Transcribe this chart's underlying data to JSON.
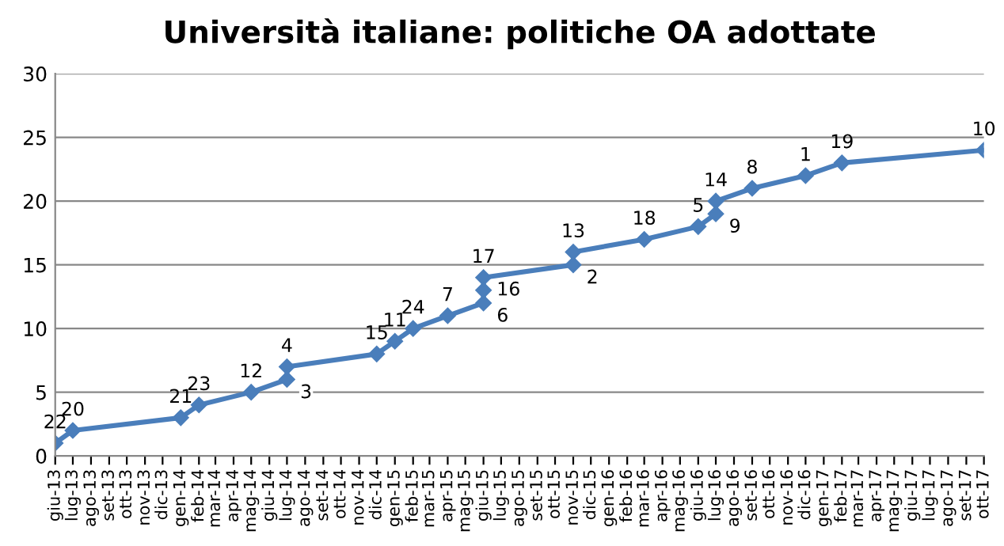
{
  "chart_data": {
    "type": "line",
    "title": "Università italiane: politiche OA adottate",
    "x": [
      "2013-06-01",
      "2013-07-01",
      "2014-01-01",
      "2014-02-01",
      "2014-05-01",
      "2014-07-01",
      "2014-07-01",
      "2014-12-01",
      "2015-01-01",
      "2015-02-01",
      "2015-04-01",
      "2015-06-01",
      "2015-06-01",
      "2015-06-01",
      "2015-11-01",
      "2015-11-01",
      "2016-03-01",
      "2016-06-01",
      "2016-07-01",
      "2016-07-01",
      "2016-09-01",
      "2016-12-01",
      "2017-02-01",
      "2017-10-01"
    ],
    "series": [
      {
        "color": "#4a7ebb",
        "values": [
          1,
          2,
          3,
          4,
          5,
          6,
          7,
          8,
          9,
          10,
          11,
          12,
          13,
          14,
          15,
          16,
          17,
          18,
          19,
          20,
          21,
          22,
          23,
          24
        ]
      }
    ],
    "annotations": [
      {
        "text": "22",
        "x": "2013-06-01",
        "y": 1
      },
      {
        "text": "20",
        "x": "2013-07-01",
        "y": 2
      },
      {
        "text": "21",
        "x": "2014-01-01",
        "y": 3
      },
      {
        "text": "23",
        "x": "2014-02-01",
        "y": 4
      },
      {
        "text": "12",
        "x": "2014-05-01",
        "y": 5
      },
      {
        "text": "3",
        "x": "2014-07-01",
        "y": 6
      },
      {
        "text": "4",
        "x": "2014-07-01",
        "y": 7
      },
      {
        "text": "15",
        "x": "2014-12-01",
        "y": 8
      },
      {
        "text": "11",
        "x": "2015-01-01",
        "y": 9
      },
      {
        "text": "24",
        "x": "2015-02-01",
        "y": 10
      },
      {
        "text": "7",
        "x": "2015-04-01",
        "y": 11
      },
      {
        "text": "6",
        "x": "2015-06-01",
        "y": 12
      },
      {
        "text": "16",
        "x": "2015-06-01",
        "y": 13
      },
      {
        "text": "17",
        "x": "2015-06-01",
        "y": 14
      },
      {
        "text": "2",
        "x": "2015-11-01",
        "y": 15
      },
      {
        "text": "13",
        "x": "2015-11-01",
        "y": 16
      },
      {
        "text": "18",
        "x": "2016-03-01",
        "y": 17
      },
      {
        "text": "5",
        "x": "2016-06-01",
        "y": 18
      },
      {
        "text": "9",
        "x": "2016-07-01",
        "y": 19
      },
      {
        "text": "14",
        "x": "2016-07-01",
        "y": 20
      },
      {
        "text": "8",
        "x": "2016-09-01",
        "y": 21
      },
      {
        "text": "1",
        "x": "2016-12-01",
        "y": 22
      },
      {
        "text": "19",
        "x": "2017-02-01",
        "y": 23
      },
      {
        "text": "10",
        "x": "2017-10-01",
        "y": 24
      }
    ],
    "xlim": [
      "2013-06-01",
      "2017-10-01"
    ],
    "xticks": [
      {
        "value": "2013-06-01",
        "label": "giu-13"
      },
      {
        "value": "2013-07-01",
        "label": "lug-13"
      },
      {
        "value": "2013-08-01",
        "label": "ago-13"
      },
      {
        "value": "2013-09-01",
        "label": "set-13"
      },
      {
        "value": "2013-10-01",
        "label": "ott-13"
      },
      {
        "value": "2013-11-01",
        "label": "nov-13"
      },
      {
        "value": "2013-12-01",
        "label": "dic-13"
      },
      {
        "value": "2014-01-01",
        "label": "gen-14"
      },
      {
        "value": "2014-02-01",
        "label": "feb-14"
      },
      {
        "value": "2014-03-01",
        "label": "mar-14"
      },
      {
        "value": "2014-04-01",
        "label": "apr-14"
      },
      {
        "value": "2014-05-01",
        "label": "mag-14"
      },
      {
        "value": "2014-06-01",
        "label": "giu-14"
      },
      {
        "value": "2014-07-01",
        "label": "lug-14"
      },
      {
        "value": "2014-08-01",
        "label": "ago-14"
      },
      {
        "value": "2014-09-01",
        "label": "set-14"
      },
      {
        "value": "2014-10-01",
        "label": "ott-14"
      },
      {
        "value": "2014-11-01",
        "label": "nov-14"
      },
      {
        "value": "2014-12-01",
        "label": "dic-14"
      },
      {
        "value": "2015-01-01",
        "label": "gen-15"
      },
      {
        "value": "2015-02-01",
        "label": "feb-15"
      },
      {
        "value": "2015-03-01",
        "label": "mar-15"
      },
      {
        "value": "2015-04-01",
        "label": "apr-15"
      },
      {
        "value": "2015-05-01",
        "label": "mag-15"
      },
      {
        "value": "2015-06-01",
        "label": "giu-15"
      },
      {
        "value": "2015-07-01",
        "label": "lug-15"
      },
      {
        "value": "2015-08-01",
        "label": "ago-15"
      },
      {
        "value": "2015-09-01",
        "label": "set-15"
      },
      {
        "value": "2015-10-01",
        "label": "ott-15"
      },
      {
        "value": "2015-11-01",
        "label": "nov-15"
      },
      {
        "value": "2015-12-01",
        "label": "dic-15"
      },
      {
        "value": "2016-01-01",
        "label": "gen-16"
      },
      {
        "value": "2016-02-01",
        "label": "feb-16"
      },
      {
        "value": "2016-03-01",
        "label": "mar-16"
      },
      {
        "value": "2016-04-01",
        "label": "apr-16"
      },
      {
        "value": "2016-05-01",
        "label": "mag-16"
      },
      {
        "value": "2016-06-01",
        "label": "giu-16"
      },
      {
        "value": "2016-07-01",
        "label": "lug-16"
      },
      {
        "value": "2016-08-01",
        "label": "ago-16"
      },
      {
        "value": "2016-09-01",
        "label": "set-16"
      },
      {
        "value": "2016-10-01",
        "label": "ott-16"
      },
      {
        "value": "2016-11-01",
        "label": "nov-16"
      },
      {
        "value": "2016-12-01",
        "label": "dic-16"
      },
      {
        "value": "2017-01-01",
        "label": "gen-17"
      },
      {
        "value": "2017-02-01",
        "label": "feb-17"
      },
      {
        "value": "2017-03-01",
        "label": "mar-17"
      },
      {
        "value": "2017-04-01",
        "label": "apr-17"
      },
      {
        "value": "2017-05-01",
        "label": "mag-17"
      },
      {
        "value": "2017-06-01",
        "label": "giu-17"
      },
      {
        "value": "2017-07-01",
        "label": "lug-17"
      },
      {
        "value": "2017-08-01",
        "label": "ago-17"
      },
      {
        "value": "2017-09-01",
        "label": "set-17"
      },
      {
        "value": "2017-10-01",
        "label": "ott-17"
      }
    ],
    "ylim": [
      0,
      30
    ],
    "yticks": [
      0,
      5,
      10,
      15,
      20,
      25,
      30
    ],
    "grid": "y",
    "marker": "diamond",
    "line_style": "solid",
    "legend": false
  }
}
